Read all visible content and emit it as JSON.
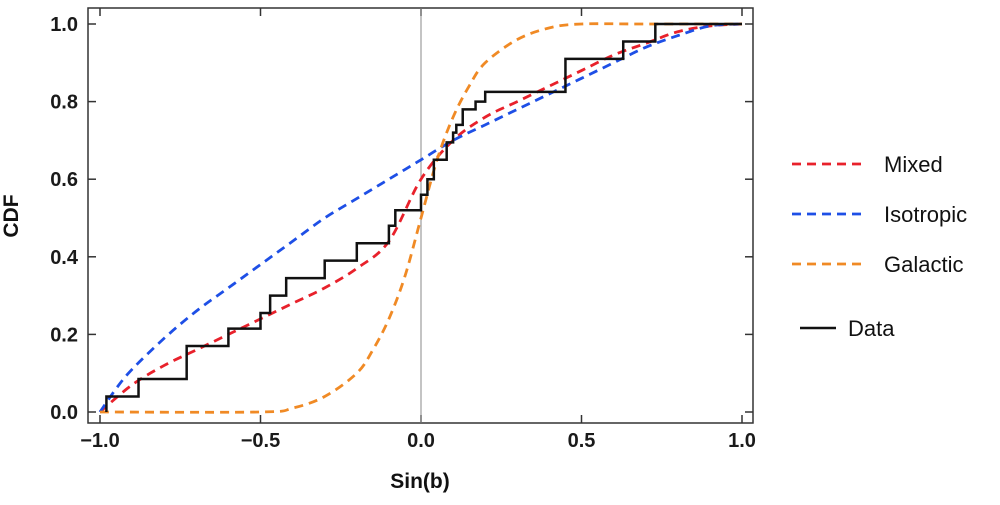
{
  "chart_data": {
    "type": "line",
    "xlabel": "Sin(b)",
    "ylabel": "CDF",
    "xlim": [
      -1.0,
      1.0
    ],
    "ylim": [
      0.0,
      1.0
    ],
    "x_ticks": [
      -1.0,
      -0.5,
      0.0,
      0.5,
      1.0
    ],
    "x_tick_labels": [
      "−1.0",
      "−0.5",
      "0.0",
      "0.5",
      "1.0"
    ],
    "y_ticks": [
      0.0,
      0.2,
      0.4,
      0.6,
      0.8,
      1.0
    ],
    "y_tick_labels": [
      "0.0",
      "0.2",
      "0.4",
      "0.6",
      "0.8",
      "1.0"
    ],
    "grid": false,
    "legend_position": "right",
    "reference_line_x": 0.0,
    "series": [
      {
        "name": "Mixed",
        "style": "dashed",
        "color": "#e8212b",
        "x": [
          -1.0,
          -0.9,
          -0.8,
          -0.7,
          -0.6,
          -0.5,
          -0.4,
          -0.3,
          -0.2,
          -0.1,
          0.0,
          0.1,
          0.2,
          0.3,
          0.4,
          0.5,
          0.6,
          0.7,
          0.8,
          0.9,
          1.0
        ],
        "y": [
          0.0,
          0.07,
          0.12,
          0.16,
          0.2,
          0.24,
          0.28,
          0.32,
          0.37,
          0.44,
          0.6,
          0.7,
          0.76,
          0.8,
          0.84,
          0.88,
          0.92,
          0.95,
          0.98,
          0.995,
          1.0
        ]
      },
      {
        "name": "Isotropic",
        "style": "dashed",
        "color": "#1e4fe6",
        "x": [
          -1.0,
          -0.95,
          -0.9,
          -0.8,
          -0.7,
          -0.6,
          -0.5,
          -0.4,
          -0.3,
          -0.2,
          -0.1,
          0.0,
          0.1,
          0.2,
          0.3,
          0.4,
          0.5,
          0.6,
          0.7,
          0.8,
          0.9,
          1.0
        ],
        "y": [
          0.0,
          0.06,
          0.11,
          0.19,
          0.26,
          0.32,
          0.38,
          0.44,
          0.5,
          0.55,
          0.6,
          0.65,
          0.7,
          0.74,
          0.78,
          0.82,
          0.86,
          0.9,
          0.94,
          0.97,
          0.995,
          1.0
        ]
      },
      {
        "name": "Galactic",
        "style": "dashed",
        "color": "#f08a25",
        "x": [
          -1.0,
          -0.5,
          -0.4,
          -0.3,
          -0.2,
          -0.15,
          -0.1,
          -0.05,
          0.0,
          0.05,
          0.1,
          0.15,
          0.2,
          0.3,
          0.4,
          0.5,
          0.7,
          1.0
        ],
        "y": [
          0.0,
          0.0,
          0.01,
          0.04,
          0.1,
          0.16,
          0.24,
          0.35,
          0.5,
          0.65,
          0.76,
          0.84,
          0.9,
          0.96,
          0.99,
          1.0,
          1.0,
          1.0
        ]
      },
      {
        "name": "Data",
        "style": "step",
        "color": "#111111",
        "x": [
          -0.98,
          -0.92,
          -0.88,
          -0.73,
          -0.6,
          -0.5,
          -0.47,
          -0.42,
          -0.37,
          -0.3,
          -0.2,
          -0.1,
          -0.08,
          -0.05,
          0.0,
          0.02,
          0.04,
          0.06,
          0.08,
          0.1,
          0.11,
          0.12,
          0.13,
          0.15,
          0.17,
          0.2,
          0.45,
          0.63,
          0.73,
          1.0
        ],
        "y": [
          0.04,
          0.04,
          0.085,
          0.17,
          0.215,
          0.255,
          0.3,
          0.345,
          0.345,
          0.39,
          0.435,
          0.48,
          0.52,
          0.52,
          0.56,
          0.6,
          0.65,
          0.65,
          0.695,
          0.72,
          0.74,
          0.74,
          0.78,
          0.78,
          0.8,
          0.825,
          0.91,
          0.955,
          1.0,
          1.0
        ]
      }
    ]
  }
}
